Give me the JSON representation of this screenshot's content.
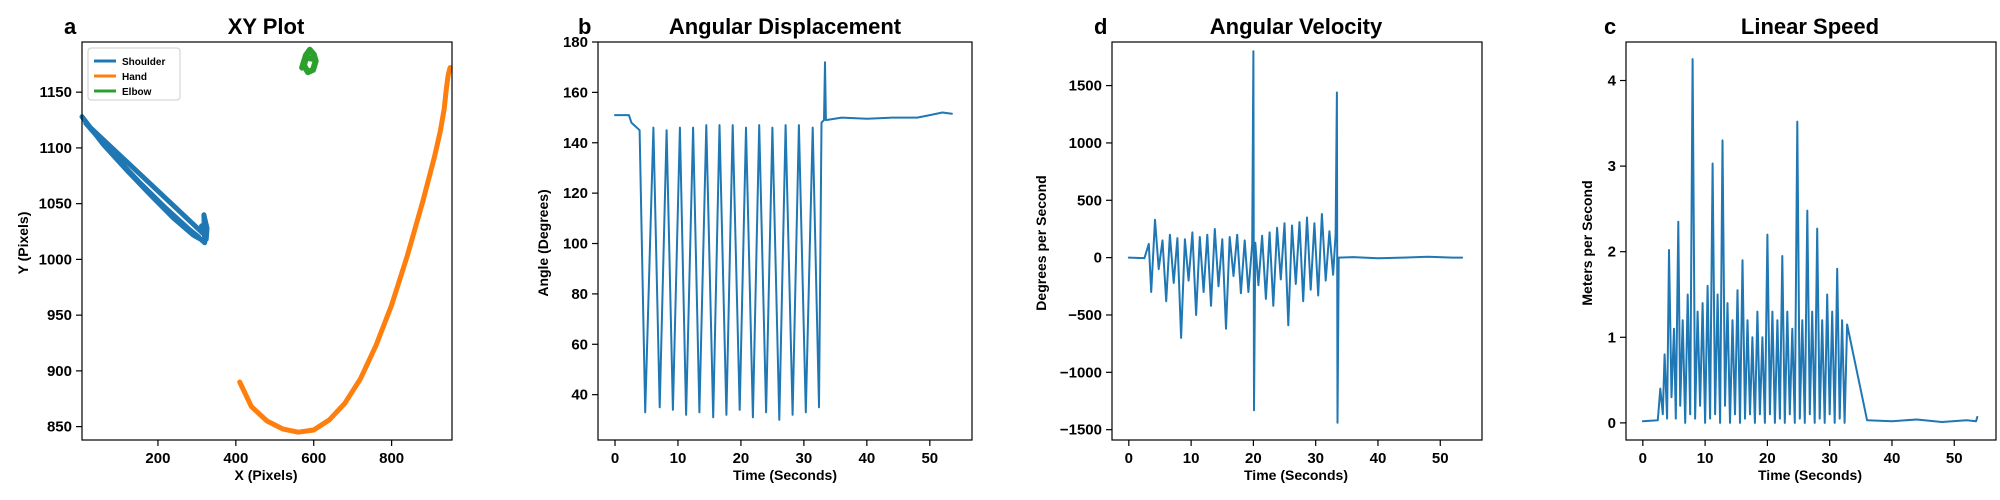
{
  "chart_data": [
    {
      "letter": "a",
      "type": "line",
      "title": "XY Plot",
      "xlabel": "X (Pixels)",
      "ylabel": "Y (Pixels)",
      "xlim": [
        5,
        955
      ],
      "ylim": [
        838,
        1195
      ],
      "xticks": [
        200,
        400,
        600,
        800
      ],
      "yticks": [
        850,
        900,
        950,
        1000,
        1050,
        1100,
        1150
      ],
      "legend": {
        "placement": "upper-left",
        "entries": [
          "Shoulder",
          "Hand",
          "Elbow"
        ]
      },
      "series": [
        {
          "name": "Shoulder",
          "color": "#1f77b4",
          "x": [
            5,
            60,
            120,
            180,
            240,
            290,
            310,
            320,
            318,
            326,
            324,
            312,
            320,
            15,
            80,
            150,
            220,
            280,
            305
          ],
          "y": [
            1128,
            1103,
            1080,
            1058,
            1037,
            1022,
            1018,
            1015,
            1040,
            1028,
            1018,
            1030,
            1022,
            1122,
            1096,
            1070,
            1046,
            1027,
            1020
          ]
        },
        {
          "name": "Hand",
          "color": "#ff7f0e",
          "x": [
            410,
            440,
            480,
            520,
            560,
            600,
            640,
            680,
            720,
            760,
            800,
            840,
            880,
            910,
            925,
            935,
            940,
            945,
            950
          ],
          "y": [
            890,
            868,
            855,
            848,
            845,
            847,
            856,
            871,
            893,
            923,
            959,
            1003,
            1052,
            1092,
            1115,
            1135,
            1152,
            1165,
            1172
          ]
        },
        {
          "name": "Elbow",
          "color": "#2ca02c",
          "x": [
            570,
            580,
            590,
            600,
            605,
            598,
            585,
            575,
            580,
            595
          ],
          "y": [
            1172,
            1183,
            1188,
            1184,
            1178,
            1170,
            1168,
            1174,
            1181,
            1180
          ]
        }
      ]
    },
    {
      "letter": "b",
      "type": "line",
      "title": "Angular Displacement",
      "xlabel": "Time (Seconds)",
      "ylabel": "Angle (Degrees)",
      "xlim": [
        -2.7,
        56.7
      ],
      "ylim": [
        22,
        180
      ],
      "xticks": [
        0,
        10,
        20,
        30,
        40,
        50
      ],
      "yticks": [
        40,
        60,
        80,
        100,
        120,
        140,
        160,
        180
      ],
      "series": [
        {
          "name": "",
          "color": "#1f77b4",
          "peaks": [
            [
              3.9,
              145
            ],
            [
              6.1,
              146
            ],
            [
              8.2,
              145
            ],
            [
              10.3,
              146
            ],
            [
              12.4,
              146
            ],
            [
              14.5,
              147
            ],
            [
              16.6,
              147
            ],
            [
              18.7,
              147
            ],
            [
              20.8,
              146
            ],
            [
              22.9,
              147
            ],
            [
              25.0,
              146
            ],
            [
              27.1,
              147
            ],
            [
              29.2,
              147
            ],
            [
              31.4,
              146
            ]
          ],
          "troughs": [
            [
              4.8,
              33
            ],
            [
              7.1,
              35
            ],
            [
              9.2,
              34
            ],
            [
              11.3,
              32
            ],
            [
              13.4,
              33
            ],
            [
              15.6,
              31
            ],
            [
              17.7,
              32
            ],
            [
              19.8,
              34
            ],
            [
              21.9,
              31
            ],
            [
              24.0,
              33
            ],
            [
              26.1,
              30
            ],
            [
              28.2,
              32
            ],
            [
              30.3,
              33
            ],
            [
              32.4,
              35
            ]
          ],
          "start": [
            [
              0,
              151
            ],
            [
              2.2,
              151
            ],
            [
              2.6,
              148
            ]
          ],
          "tail": [
            [
              32.8,
              148
            ],
            [
              33.2,
              149
            ],
            [
              33.35,
              172
            ],
            [
              33.5,
              149
            ],
            [
              36,
              150
            ],
            [
              40,
              149.5
            ],
            [
              44,
              150
            ],
            [
              48,
              150
            ],
            [
              50,
              151
            ],
            [
              52,
              152
            ],
            [
              53.5,
              151.5
            ]
          ]
        }
      ]
    },
    {
      "letter": "d",
      "type": "line",
      "title": "Angular Velocity",
      "xlabel": "Time (Seconds)",
      "ylabel": "Degrees per Second",
      "xlim": [
        -2.7,
        56.7
      ],
      "ylim": [
        -1590,
        1880
      ],
      "xticks": [
        0,
        10,
        20,
        30,
        40,
        50
      ],
      "yticks": [
        -1500,
        -1000,
        -500,
        0,
        500,
        1000,
        1500
      ],
      "series": [
        {
          "name": "",
          "color": "#1f77b4",
          "x": [
            0,
            2.5,
            3.2,
            3.6,
            4.2,
            4.8,
            5.4,
            6.0,
            6.6,
            7.2,
            7.8,
            8.4,
            9.0,
            9.6,
            10.2,
            10.8,
            11.4,
            12.0,
            12.6,
            13.2,
            13.8,
            14.4,
            15.0,
            15.6,
            16.2,
            16.8,
            17.4,
            18.0,
            18.6,
            19.2,
            19.8,
            20.0,
            20.1,
            20.3,
            20.8,
            21.4,
            22.0,
            22.6,
            23.2,
            23.8,
            24.4,
            25.0,
            25.6,
            26.2,
            26.8,
            27.4,
            28.0,
            28.6,
            29.2,
            29.8,
            30.4,
            31.0,
            31.6,
            32.2,
            32.8,
            33.2,
            33.4,
            33.5,
            33.7,
            36,
            40,
            44,
            48,
            52,
            53.5
          ],
          "y": [
            0,
            -5,
            120,
            -300,
            330,
            -100,
            150,
            -380,
            200,
            -220,
            170,
            -700,
            160,
            -200,
            220,
            -500,
            180,
            -300,
            200,
            -420,
            250,
            -250,
            160,
            -620,
            180,
            -160,
            200,
            -310,
            150,
            -300,
            120,
            1800,
            -1330,
            130,
            -240,
            190,
            -360,
            220,
            -420,
            260,
            -190,
            300,
            -590,
            280,
            -230,
            310,
            -380,
            350,
            -280,
            300,
            -330,
            380,
            -200,
            230,
            -150,
            200,
            1440,
            -1440,
            0,
            5,
            -5,
            0,
            8,
            0,
            0
          ]
        }
      ]
    },
    {
      "letter": "c",
      "type": "line",
      "title": "Linear Speed",
      "xlabel": "Time (Seconds)",
      "ylabel": "Meters per Second",
      "xlim": [
        -2.7,
        56.7
      ],
      "ylim": [
        -0.2,
        4.45
      ],
      "xticks": [
        0,
        10,
        20,
        30,
        40,
        50
      ],
      "yticks": [
        0,
        1,
        2,
        3,
        4
      ],
      "series": [
        {
          "name": "",
          "color": "#1f77b4",
          "x": [
            0,
            2.4,
            2.8,
            3.2,
            3.5,
            3.9,
            4.2,
            4.6,
            5.0,
            5.3,
            5.7,
            6.0,
            6.4,
            6.8,
            7.2,
            7.6,
            8.0,
            8.4,
            8.8,
            9.2,
            9.6,
            10.0,
            10.4,
            10.8,
            11.2,
            11.6,
            12.0,
            12.4,
            12.8,
            13.2,
            13.6,
            14.0,
            14.4,
            14.8,
            15.2,
            15.6,
            16.0,
            16.4,
            16.8,
            17.2,
            17.6,
            18.0,
            18.4,
            18.8,
            19.2,
            19.6,
            20.0,
            20.4,
            20.8,
            21.2,
            21.6,
            22.0,
            22.4,
            22.8,
            23.2,
            23.6,
            24.0,
            24.4,
            24.8,
            25.2,
            25.6,
            26.0,
            26.4,
            26.8,
            27.2,
            27.6,
            28.0,
            28.4,
            28.8,
            29.2,
            29.6,
            30.0,
            30.4,
            30.8,
            31.2,
            31.6,
            32.0,
            32.4,
            32.8,
            36,
            40,
            44,
            48,
            52,
            53.5,
            53.7
          ],
          "y": [
            0.02,
            0.03,
            0.4,
            0.1,
            0.8,
            0.05,
            2.02,
            0.3,
            1.1,
            0.05,
            2.35,
            0.2,
            1.2,
            0.0,
            1.5,
            0.1,
            4.25,
            0.05,
            1.3,
            0.2,
            1.4,
            0.0,
            1.6,
            0.05,
            3.03,
            0.1,
            1.5,
            0.0,
            3.3,
            0.2,
            1.4,
            0.0,
            1.2,
            0.1,
            1.55,
            0.0,
            1.9,
            0.05,
            1.2,
            0.1,
            1.0,
            0.0,
            1.3,
            0.1,
            1.0,
            0.0,
            2.2,
            0.1,
            1.3,
            0.0,
            1.2,
            0.05,
            1.95,
            0.0,
            1.3,
            0.1,
            1.1,
            0.0,
            3.52,
            0.05,
            1.2,
            0.0,
            2.48,
            0.1,
            1.3,
            0.0,
            2.27,
            0.05,
            1.2,
            0.0,
            1.5,
            0.1,
            1.3,
            0.0,
            1.8,
            0.05,
            1.2,
            0.0,
            1.15,
            0.03,
            0.02,
            0.04,
            0.01,
            0.03,
            0.02,
            0.07
          ]
        }
      ]
    }
  ]
}
